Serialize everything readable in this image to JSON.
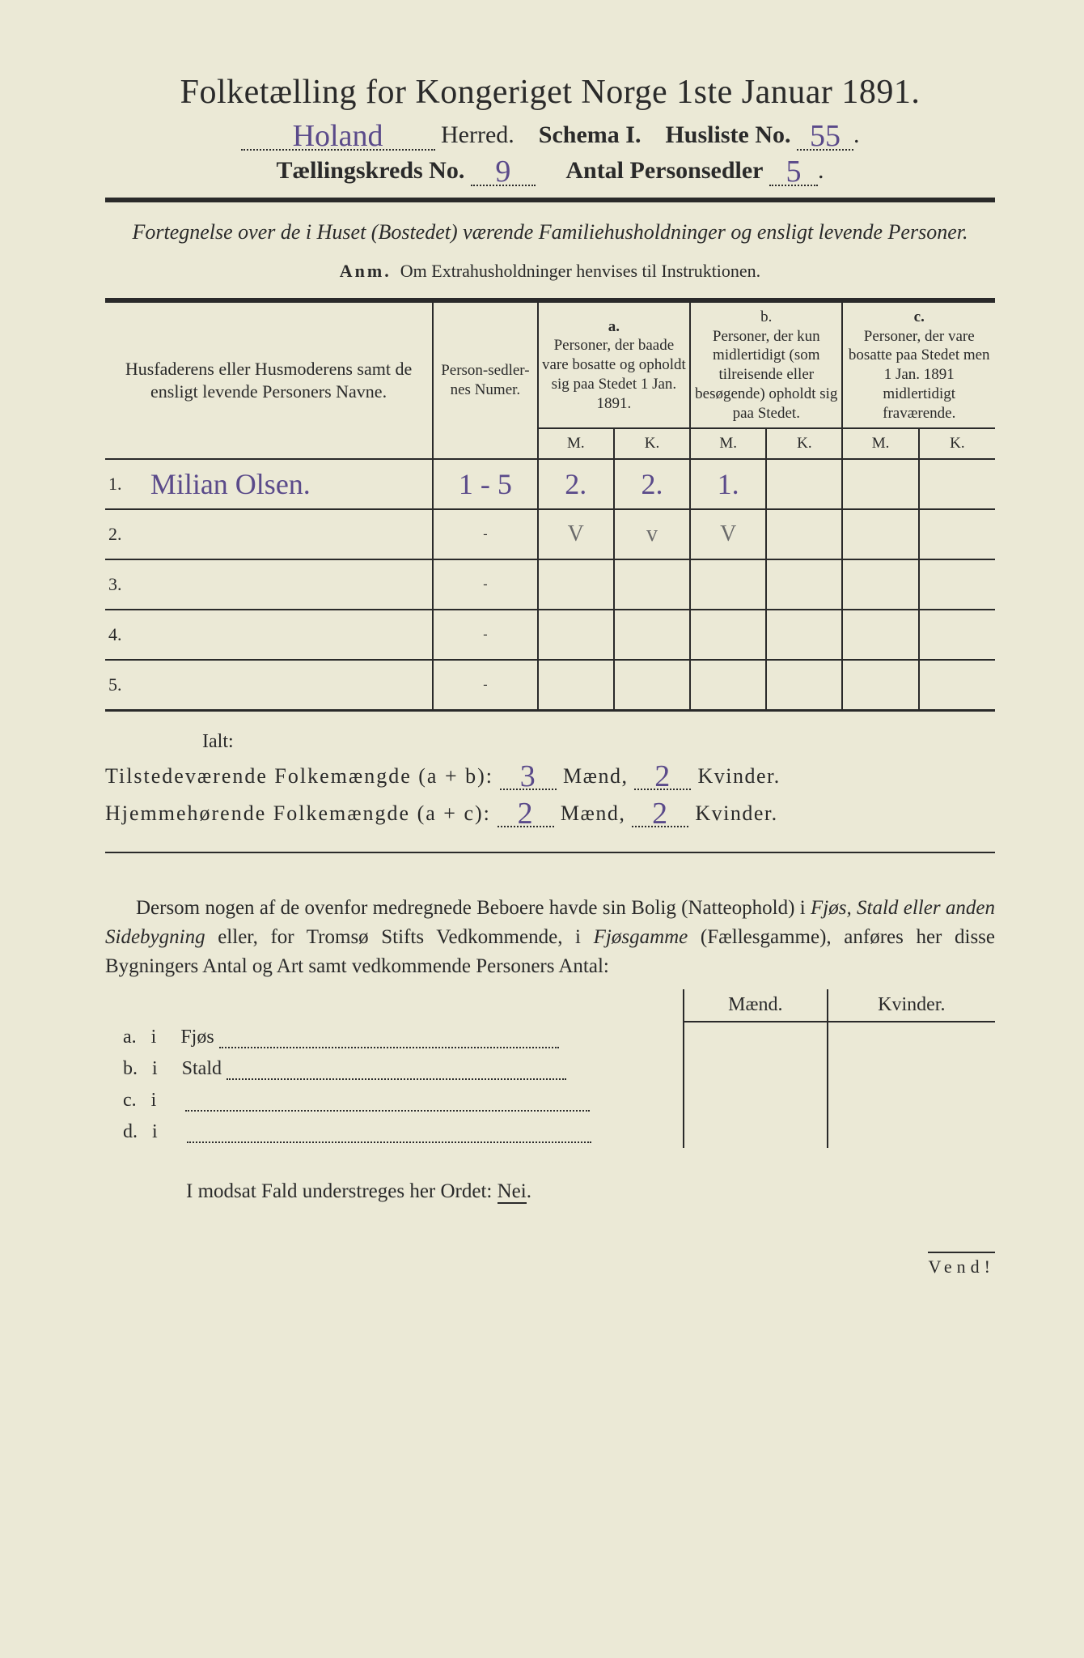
{
  "header": {
    "title": "Folketælling for Kongeriget Norge 1ste Januar 1891.",
    "herred_value": "Holand",
    "herred_label": "Herred.",
    "schema_label": "Schema I.",
    "husliste_label": "Husliste No.",
    "husliste_value": "55",
    "kreds_label": "Tællingskreds No.",
    "kreds_value": "9",
    "antal_label": "Antal Personsedler",
    "antal_value": "5"
  },
  "subtitle": "Fortegnelse over de i Huset (Bostedet) værende Familiehusholdninger og ensligt levende Personer.",
  "anm": {
    "label": "Anm.",
    "text": "Om Extrahusholdninger henvises til Instruktionen."
  },
  "table": {
    "col_name": "Husfaderens eller Husmoderens samt de ensligt levende Personers Navne.",
    "col_pers": "Person-sedler-nes Numer.",
    "col_a_head": "a.",
    "col_a": "Personer, der baade vare bosatte og opholdt sig paa Stedet 1 Jan. 1891.",
    "col_b_head": "b.",
    "col_b": "Personer, der kun midlertidigt (som tilreisende eller besøgende) opholdt sig paa Stedet.",
    "col_c_head": "c.",
    "col_c": "Personer, der vare bosatte paa Stedet men 1 Jan. 1891 midlertidigt fraværende.",
    "mk_m": "M.",
    "mk_k": "K.",
    "rows": [
      {
        "n": "1.",
        "name": "Milian Olsen.",
        "pers": "1 - 5",
        "a_m": "2.",
        "a_k": "2.",
        "b_m": "1.",
        "b_k": "",
        "c_m": "",
        "c_k": ""
      },
      {
        "n": "2.",
        "name": "",
        "pers": "-",
        "a_m": "✓",
        "a_k": "✓",
        "b_m": "✓",
        "b_k": "",
        "c_m": "",
        "c_k": "",
        "check": true
      },
      {
        "n": "3.",
        "name": "",
        "pers": "-",
        "a_m": "",
        "a_k": "",
        "b_m": "",
        "b_k": "",
        "c_m": "",
        "c_k": ""
      },
      {
        "n": "4.",
        "name": "",
        "pers": "-",
        "a_m": "",
        "a_k": "",
        "b_m": "",
        "b_k": "",
        "c_m": "",
        "c_k": ""
      },
      {
        "n": "5.",
        "name": "",
        "pers": "-",
        "a_m": "",
        "a_k": "",
        "b_m": "",
        "b_k": "",
        "c_m": "",
        "c_k": ""
      }
    ]
  },
  "ialt_label": "Ialt:",
  "totals": {
    "line1_label": "Tilstedeværende Folkemængde (a + b):",
    "line1_m": "3",
    "line1_k": "2",
    "line2_label": "Hjemmehørende Folkemængde (a + c):",
    "line2_m": "2",
    "line2_k": "2",
    "maend": "Mænd,",
    "kvinder": "Kvinder."
  },
  "para_text": "Dersom nogen af de ovenfor medregnede Beboere havde sin Bolig (Natteophold) i Fjøs, Stald eller anden Sidebygning eller, for Tromsø Stifts Vedkommende, i Fjøsgamme (Fællesgamme), anføres her disse Bygningers Antal og Art samt vedkommende Personers Antal:",
  "mk_header_m": "Mænd.",
  "mk_header_k": "Kvinder.",
  "bygning_rows": [
    {
      "key": "a.",
      "i": "i",
      "label": "Fjøs"
    },
    {
      "key": "b.",
      "i": "i",
      "label": "Stald"
    },
    {
      "key": "c.",
      "i": "i",
      "label": ""
    },
    {
      "key": "d.",
      "i": "i",
      "label": ""
    }
  ],
  "footer": "I modsat Fald understreges her Ordet: Nei.",
  "vend": "Vend!",
  "colors": {
    "paper": "#ebe9d6",
    "ink": "#2a2a2a",
    "handwriting": "#5a4a8a",
    "pencil": "#6a6a6a"
  },
  "typography": {
    "title_fontsize": 42,
    "body_fontsize": 25,
    "table_header_fontsize": 19,
    "handwritten_fontsize": 38
  }
}
